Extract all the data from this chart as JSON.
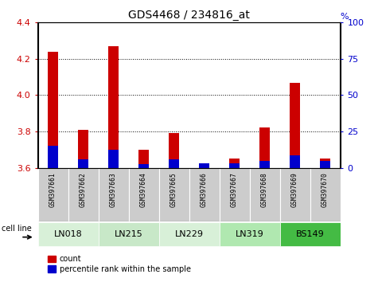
{
  "title": "GDS4468 / 234816_at",
  "samples": [
    "GSM397661",
    "GSM397662",
    "GSM397663",
    "GSM397664",
    "GSM397665",
    "GSM397666",
    "GSM397667",
    "GSM397668",
    "GSM397669",
    "GSM397670"
  ],
  "count_values": [
    4.24,
    3.81,
    4.27,
    3.7,
    3.79,
    3.62,
    3.65,
    3.82,
    4.07,
    3.65
  ],
  "percentile_values": [
    3.72,
    3.645,
    3.7,
    3.62,
    3.645,
    3.625,
    3.625,
    3.636,
    3.67,
    3.636
  ],
  "cell_line_groups": [
    {
      "name": "LN018",
      "start": 0,
      "end": 1,
      "color": "#d8f0d8"
    },
    {
      "name": "LN215",
      "start": 2,
      "end": 3,
      "color": "#c8e8c8"
    },
    {
      "name": "LN229",
      "start": 4,
      "end": 5,
      "color": "#d8f0d8"
    },
    {
      "name": "LN319",
      "start": 6,
      "end": 7,
      "color": "#b0e8b0"
    },
    {
      "name": "BS149",
      "start": 8,
      "end": 9,
      "color": "#44bb44"
    }
  ],
  "y_min": 3.6,
  "y_max": 4.4,
  "y_ticks": [
    3.6,
    3.8,
    4.0,
    4.2,
    4.4
  ],
  "y_right_ticks": [
    0,
    25,
    50,
    75,
    100
  ],
  "bar_color": "#cc0000",
  "percentile_color": "#0000cc",
  "grid_color": "#000000",
  "bg_color": "#ffffff",
  "sample_bg_color": "#cccccc",
  "legend_count": "count",
  "legend_percentile": "percentile rank within the sample"
}
